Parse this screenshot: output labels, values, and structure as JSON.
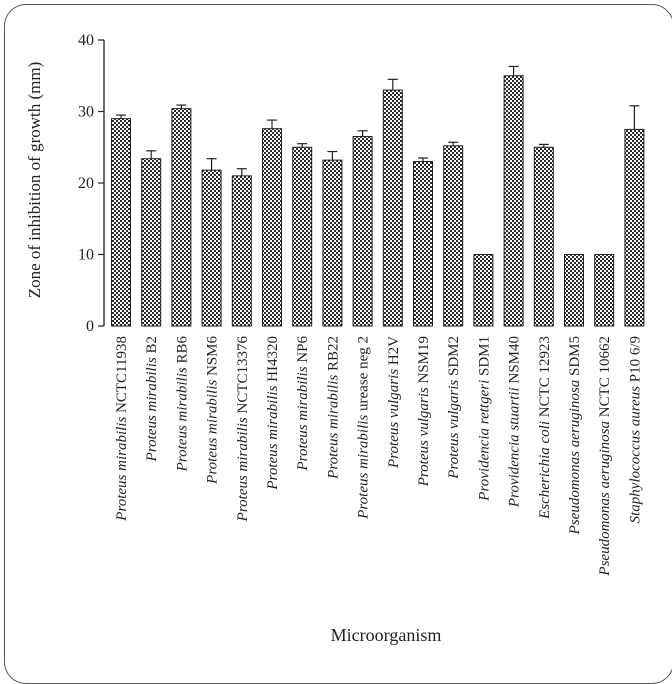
{
  "chart_data": {
    "type": "bar",
    "title": "",
    "xlabel": "Microorganism",
    "ylabel": "Zone of inhibition of growth (mm)",
    "ylim": [
      0,
      40
    ],
    "yticks": [
      0,
      10,
      20,
      30,
      40
    ],
    "grid": false,
    "legend": "none",
    "categories": [
      "Proteus mirabilis NCTC11938",
      "Proteus mirabilis B2",
      "Proteus mirabilis RB6",
      "Proteus mirabilis NSM6",
      "Proteus mirabilis NCTC13376",
      "Proteus mirabilis HI4320",
      "Proteus mirabilis NP6",
      "Proteus mirabilis RB22",
      "Proteus mirabilis urease neg 2",
      "Proteus vulgaris H2V",
      "Proteus vulgaris NSM19",
      "Proteus vulgaris SDM2",
      "Providencia rettgeri SDM1",
      "Providencia stuartii NSM40",
      "Escherichia coli NCTC 12923",
      "Pseudomonas aeruginosa SDM5",
      "Pseudomonas aeruginosa NCTC 10662",
      "Staphylococcus aureus P10 6/9"
    ],
    "values": [
      29.0,
      23.4,
      30.4,
      21.8,
      21.0,
      27.6,
      25.0,
      23.2,
      26.5,
      33.0,
      23.0,
      25.2,
      10.0,
      35.0,
      25.0,
      10.0,
      10.0,
      27.5
    ],
    "errors": [
      0.5,
      1.1,
      0.5,
      1.6,
      1.0,
      1.2,
      0.5,
      1.2,
      0.8,
      1.5,
      0.5,
      0.5,
      0.0,
      1.3,
      0.4,
      0.0,
      0.0,
      3.3
    ],
    "bar_fill": "checkerboard",
    "bar_color": "#333333"
  }
}
